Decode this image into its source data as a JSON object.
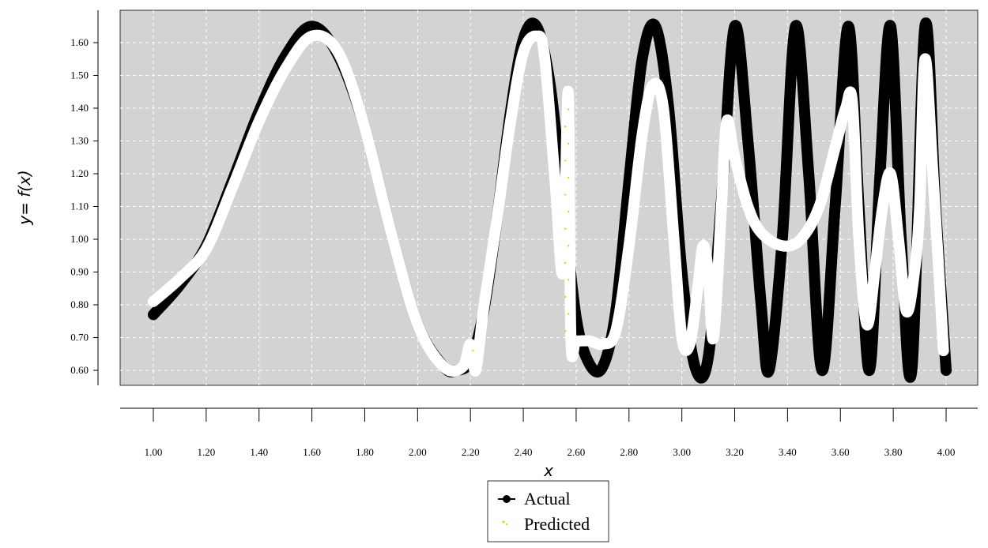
{
  "chart_data": {
    "type": "line",
    "xlabel": "x",
    "ylabel": "y= f(x)",
    "xlim": [
      1.0,
      4.0
    ],
    "ylim": [
      0.6,
      1.65
    ],
    "x_ticks": [
      1.0,
      1.2,
      1.4,
      1.6,
      1.8,
      2.0,
      2.2,
      2.4,
      2.6,
      2.8,
      3.0,
      3.2,
      3.4,
      3.6,
      3.8,
      4.0
    ],
    "x_tick_labels": [
      "1.00",
      "1.20",
      "1.40",
      "1.60",
      "1.80",
      "2.00",
      "2.20",
      "2.40",
      "2.60",
      "2.80",
      "3.00",
      "3.20",
      "3.40",
      "3.60",
      "3.80",
      "4.00"
    ],
    "y_ticks": [
      0.6,
      0.7,
      0.8,
      0.9,
      1.0,
      1.1,
      1.2,
      1.3,
      1.4,
      1.5,
      1.6
    ],
    "y_tick_labels": [
      "0.60",
      "0.70",
      "0.80",
      "0.90",
      "1.00",
      "1.10",
      "1.20",
      "1.30",
      "1.40",
      "1.50",
      "1.60"
    ],
    "grid": true,
    "legend_position": "bottom-center",
    "background_color": "#d3d3d3",
    "series": [
      {
        "name": "Actual",
        "color": "#000000",
        "x": [
          1.0,
          1.1,
          1.2,
          1.3,
          1.4,
          1.5,
          1.6,
          1.7,
          1.8,
          1.9,
          2.0,
          2.1,
          2.15,
          2.2,
          2.25,
          2.3,
          2.35,
          2.4,
          2.45,
          2.5,
          2.55,
          2.6,
          2.65,
          2.7,
          2.75,
          2.8,
          2.85,
          2.9,
          2.95,
          3.0,
          3.05,
          3.1,
          3.15,
          3.2,
          3.25,
          3.3,
          3.33,
          3.38,
          3.43,
          3.48,
          3.53,
          3.58,
          3.63,
          3.67,
          3.71,
          3.75,
          3.79,
          3.83,
          3.87,
          3.92,
          3.96,
          4.0
        ],
        "y": [
          0.77,
          0.86,
          0.98,
          1.18,
          1.39,
          1.56,
          1.65,
          1.56,
          1.34,
          1.02,
          0.74,
          0.61,
          0.6,
          0.63,
          0.78,
          1.06,
          1.38,
          1.61,
          1.65,
          1.48,
          1.12,
          0.76,
          0.62,
          0.61,
          0.78,
          1.18,
          1.55,
          1.65,
          1.4,
          0.9,
          0.61,
          0.64,
          1.12,
          1.65,
          1.3,
          0.8,
          0.6,
          1.0,
          1.65,
          1.2,
          0.6,
          1.1,
          1.65,
          1.1,
          0.6,
          1.2,
          1.65,
          1.0,
          0.6,
          1.65,
          1.1,
          0.6
        ]
      },
      {
        "name": "Predicted",
        "color": "#ffffff",
        "marker_color": "#f5c518",
        "x": [
          1.0,
          1.1,
          1.2,
          1.3,
          1.4,
          1.5,
          1.6,
          1.7,
          1.8,
          1.9,
          2.0,
          2.1,
          2.17,
          2.2,
          2.22,
          2.25,
          2.3,
          2.35,
          2.4,
          2.45,
          2.48,
          2.52,
          2.55,
          2.57,
          2.58,
          2.6,
          2.65,
          2.7,
          2.75,
          2.8,
          2.85,
          2.89,
          2.93,
          2.97,
          3.0,
          3.03,
          3.06,
          3.08,
          3.1,
          3.12,
          3.15,
          3.17,
          3.2,
          3.25,
          3.3,
          3.38,
          3.45,
          3.52,
          3.58,
          3.62,
          3.645,
          3.67,
          3.7,
          3.73,
          3.76,
          3.79,
          3.82,
          3.85,
          3.88,
          3.9,
          3.92,
          3.95,
          3.99
        ],
        "y": [
          0.81,
          0.88,
          0.97,
          1.16,
          1.36,
          1.52,
          1.62,
          1.57,
          1.34,
          1.02,
          0.74,
          0.61,
          0.61,
          0.68,
          0.6,
          0.79,
          1.06,
          1.35,
          1.57,
          1.62,
          1.56,
          1.18,
          0.9,
          1.45,
          0.7,
          0.69,
          0.69,
          0.68,
          0.72,
          0.98,
          1.32,
          1.47,
          1.4,
          1.0,
          0.7,
          0.68,
          0.85,
          0.98,
          0.9,
          0.7,
          1.1,
          1.36,
          1.25,
          1.1,
          1.02,
          0.98,
          1.0,
          1.1,
          1.28,
          1.4,
          1.42,
          1.0,
          0.74,
          0.9,
          1.1,
          1.2,
          1.0,
          0.78,
          0.9,
          1.1,
          1.55,
          1.2,
          0.66
        ]
      }
    ],
    "legend": [
      {
        "label": "Actual"
      },
      {
        "label": "Predicted"
      }
    ]
  }
}
